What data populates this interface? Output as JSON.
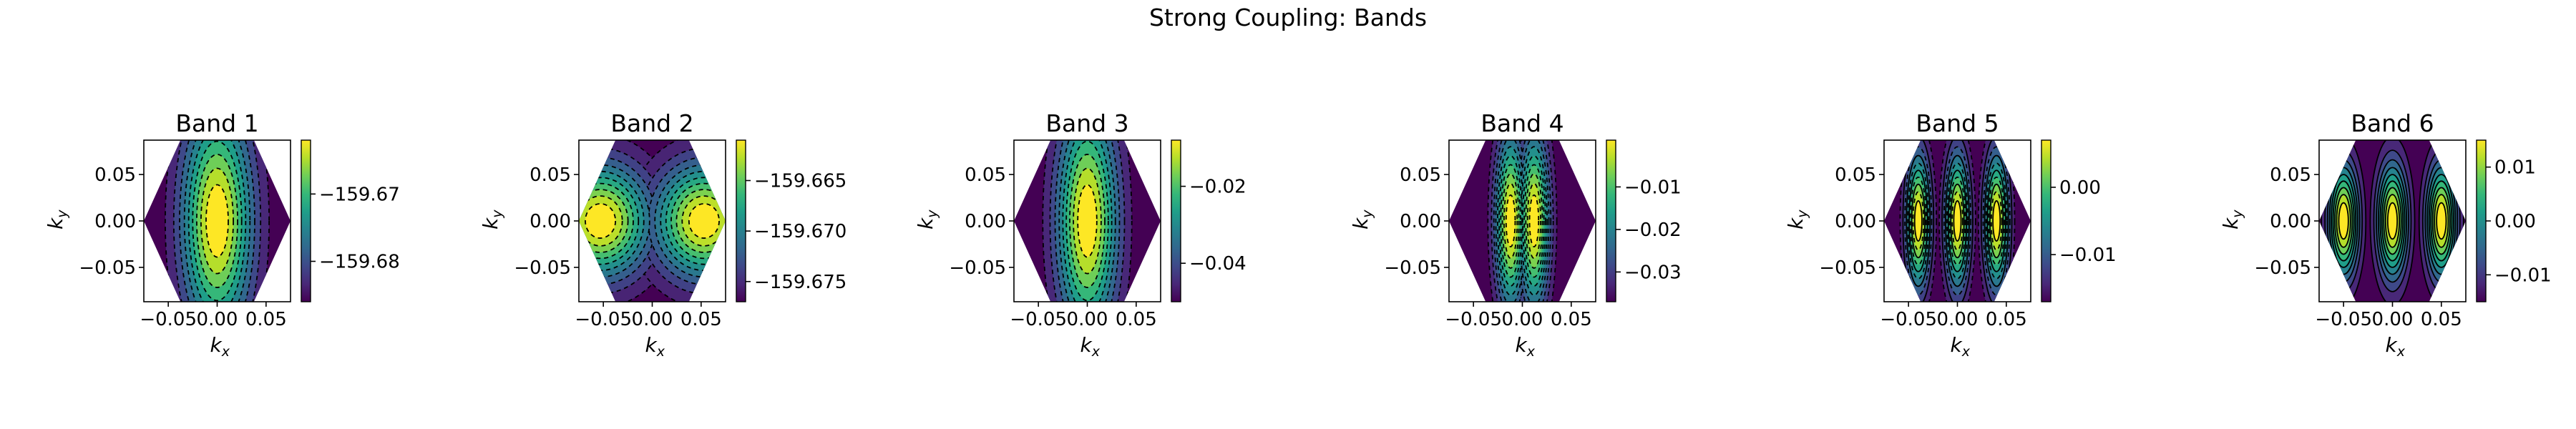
{
  "figure": {
    "suptitle": "Strong Coupling: Bands"
  },
  "chart_data": [
    {
      "type": "contour",
      "title": "Band 1",
      "xlabel": "k_x",
      "ylabel": "k_y",
      "xlim": [
        -0.075,
        0.075
      ],
      "ylim": [
        -0.087,
        0.087
      ],
      "xticks": [
        "−0.05",
        "0.00",
        "0.05"
      ],
      "yticks": [
        "0.05",
        "0.00",
        "−0.05"
      ],
      "colorbar": {
        "range": [
          -159.686,
          -159.662
        ],
        "ticks": [
          -159.67,
          -159.68
        ],
        "tick_labels": [
          "−159.67",
          "−159.68"
        ]
      },
      "field": {
        "kind": "ridge",
        "sx": 0.035,
        "sy": 0.12,
        "cx": [
          0
        ]
      },
      "contours": {
        "levels": 9,
        "style": "dashed"
      }
    },
    {
      "type": "contour",
      "title": "Band 2",
      "xlabel": "k_x",
      "ylabel": "k_y",
      "xlim": [
        -0.075,
        0.075
      ],
      "ylim": [
        -0.087,
        0.087
      ],
      "xticks": [
        "−0.05",
        "0.00",
        "0.05"
      ],
      "yticks": [
        "0.05",
        "0.00",
        "−0.05"
      ],
      "colorbar": {
        "range": [
          -159.677,
          -159.661
        ],
        "ticks": [
          -159.665,
          -159.67,
          -159.675
        ],
        "tick_labels": [
          "−159.665",
          "−159.670",
          "−159.675"
        ]
      },
      "field": {
        "kind": "twin",
        "sx": 0.05,
        "sy": 0.06,
        "cx": [
          -0.053,
          0.053
        ]
      },
      "contours": {
        "levels": 10,
        "style": "dashed"
      }
    },
    {
      "type": "contour",
      "title": "Band 3",
      "xlabel": "k_x",
      "ylabel": "k_y",
      "xlim": [
        -0.075,
        0.075
      ],
      "ylim": [
        -0.087,
        0.087
      ],
      "xticks": [
        "−0.05",
        "0.00",
        "0.05"
      ],
      "yticks": [
        "0.05",
        "0.00",
        "−0.05"
      ],
      "colorbar": {
        "range": [
          -0.05,
          -0.008
        ],
        "ticks": [
          -0.02,
          -0.04
        ],
        "tick_labels": [
          "−0.02",
          "−0.04"
        ]
      },
      "field": {
        "kind": "ridge",
        "sx": 0.03,
        "sy": 0.12,
        "cx": [
          0
        ]
      },
      "contours": {
        "levels": 9,
        "style": "dashed"
      }
    },
    {
      "type": "contour",
      "title": "Band 4",
      "xlabel": "k_x",
      "ylabel": "k_y",
      "xlim": [
        -0.075,
        0.075
      ],
      "ylim": [
        -0.087,
        0.087
      ],
      "xticks": [
        "−0.05",
        "0.00",
        "0.05"
      ],
      "yticks": [
        "0.05",
        "0.00",
        "−0.05"
      ],
      "colorbar": {
        "range": [
          -0.037,
          0.001
        ],
        "ticks": [
          -0.01,
          -0.02,
          -0.03
        ],
        "tick_labels": [
          "−0.01",
          "−0.02",
          "−0.03"
        ]
      },
      "field": {
        "kind": "twin",
        "sx": 0.015,
        "sy": 0.09,
        "cx": [
          -0.012,
          0.012
        ]
      },
      "contours": {
        "levels": 10,
        "style": "dashed"
      }
    },
    {
      "type": "contour",
      "title": "Band 5",
      "xlabel": "k_x",
      "ylabel": "k_y",
      "xlim": [
        -0.075,
        0.075
      ],
      "ylim": [
        -0.087,
        0.087
      ],
      "xticks": [
        "−0.05",
        "0.00",
        "0.05"
      ],
      "yticks": [
        "0.00",
        "−0.01"
      ],
      "yticks_axis": [
        "0.05",
        "0.00",
        "−0.05"
      ],
      "colorbar": {
        "range": [
          -0.017,
          0.007
        ],
        "ticks": [
          0.0,
          -0.01
        ],
        "tick_labels": [
          "0.00",
          "−0.01"
        ]
      },
      "field": {
        "kind": "multi",
        "sx": 0.012,
        "sy": 0.07,
        "cx": [
          -0.04,
          0,
          0.04
        ]
      },
      "contours": {
        "levels": 10,
        "style": "mixed"
      }
    },
    {
      "type": "contour",
      "title": "Band 6",
      "xlabel": "k_x",
      "ylabel": "k_y",
      "xlim": [
        -0.075,
        0.075
      ],
      "ylim": [
        -0.087,
        0.087
      ],
      "xticks": [
        "−0.05",
        "0.00",
        "0.05"
      ],
      "yticks_axis": [
        "0.05",
        "0.00",
        "−0.05"
      ],
      "colorbar": {
        "range": [
          -0.015,
          0.015
        ],
        "ticks": [
          0.01,
          0.0,
          -0.01
        ],
        "tick_labels": [
          "0.01",
          "0.00",
          "−0.01"
        ]
      },
      "field": {
        "kind": "multi",
        "sx": 0.015,
        "sy": 0.06,
        "cx": [
          -0.05,
          0,
          0.05
        ]
      },
      "contours": {
        "levels": 9,
        "style": "solid"
      }
    }
  ]
}
